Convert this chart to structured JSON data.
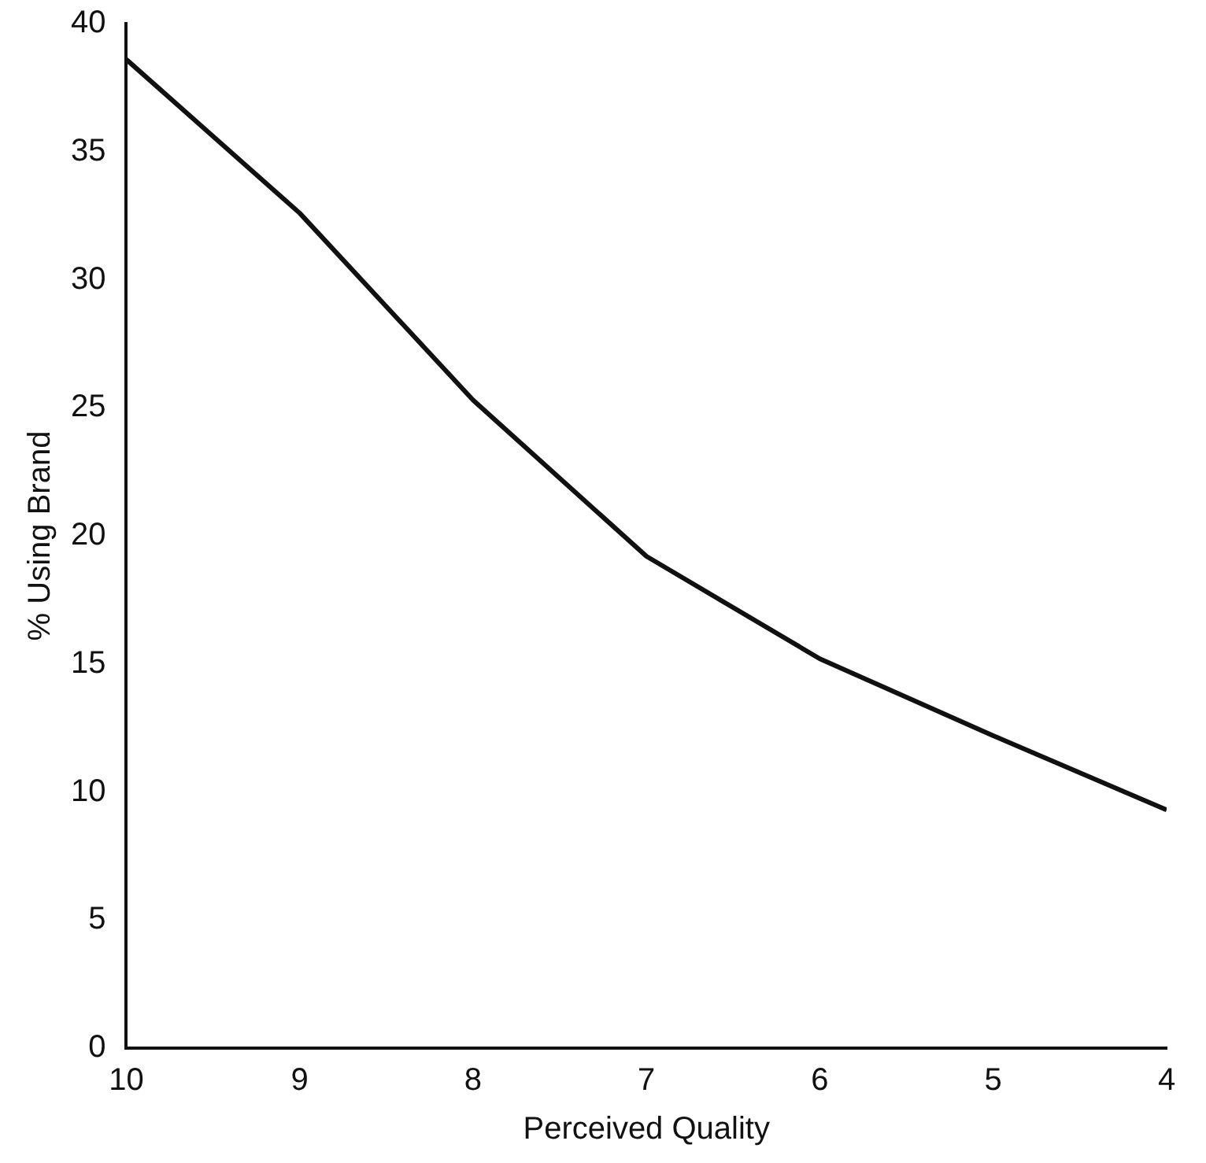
{
  "chart_data": {
    "type": "line",
    "xlabel": "Perceived Quality",
    "ylabel": "% Using Brand",
    "x": [
      10,
      9,
      8,
      7,
      6,
      5,
      4
    ],
    "series": [
      {
        "color": "#111111",
        "values": [
          38.6,
          32.6,
          25.3,
          19.2,
          15.2,
          12.2,
          9.3
        ]
      }
    ],
    "xlim": [
      10,
      4
    ],
    "xticks": [
      10,
      9,
      8,
      7,
      6,
      5,
      4
    ],
    "ylim": [
      0,
      40
    ],
    "yticks": [
      0,
      5,
      10,
      15,
      20,
      25,
      30,
      35,
      40
    ],
    "grid": false,
    "legend": false,
    "marker": "none",
    "line_style": "solid"
  }
}
